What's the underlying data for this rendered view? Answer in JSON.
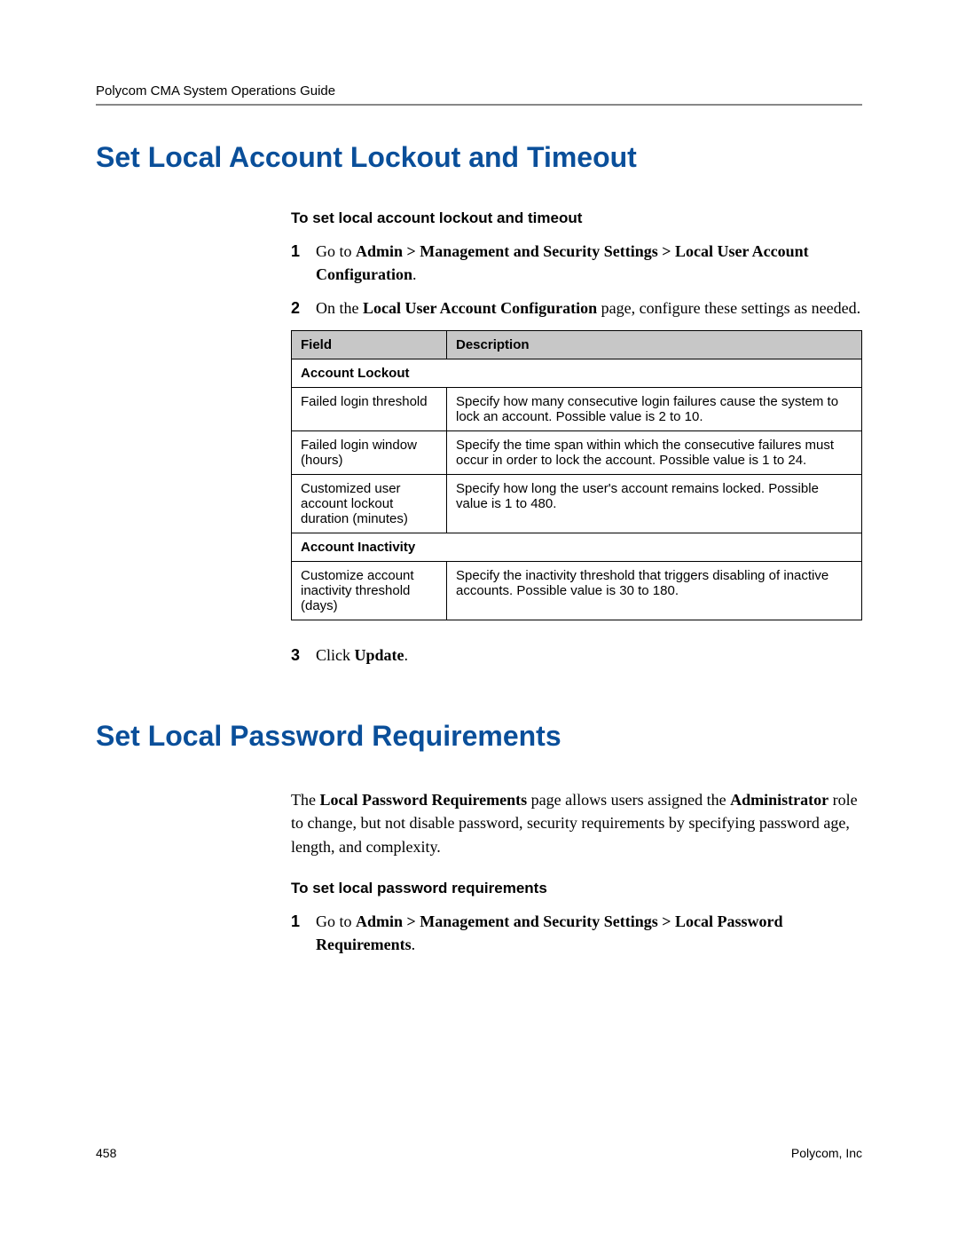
{
  "header": {
    "title": "Polycom CMA System Operations Guide"
  },
  "section1": {
    "heading": "Set Local Account Lockout and Timeout",
    "procedure_title": "To set local account lockout and timeout",
    "steps": {
      "s1": {
        "num": "1",
        "pre": "Go to ",
        "bold": "Admin > Management and Security Settings > Local User Account Configuration",
        "post": "."
      },
      "s2": {
        "num": "2",
        "pre": "On the ",
        "bold": "Local User Account Configuration",
        "post": " page, configure these settings as needed."
      },
      "s3": {
        "num": "3",
        "pre": "Click ",
        "bold": "Update",
        "post": "."
      }
    },
    "table": {
      "col1": "Field",
      "col2": "Description",
      "sectA": "Account Lockout",
      "r1f": "Failed login threshold",
      "r1d": "Specify how many consecutive login failures cause the system to lock an account. Possible value is 2 to 10.",
      "r2f": "Failed login window (hours)",
      "r2d": "Specify the time span within which the consecutive failures must occur in order to lock the account. Possible value is 1 to 24.",
      "r3f": "Customized user account lockout duration (minutes)",
      "r3d": "Specify how long the user's account remains locked. Possible value is 1 to 480.",
      "sectB": "Account Inactivity",
      "r4f": "Customize account inactivity threshold (days)",
      "r4d": "Specify the inactivity threshold that triggers disabling of inactive accounts. Possible value is 30 to 180."
    }
  },
  "section2": {
    "heading": "Set Local Password Requirements",
    "intro": {
      "pre": "The ",
      "b1": "Local Password Requirements",
      "mid": " page allows users assigned the ",
      "b2": "Administrator",
      "post": " role to change, but not disable password, security requirements by specifying password age, length, and complexity."
    },
    "procedure_title": "To set local password requirements",
    "steps": {
      "s1": {
        "num": "1",
        "pre": "Go to ",
        "bold": "Admin > Management and Security Settings > Local Password Requirements",
        "post": "."
      }
    }
  },
  "footer": {
    "page": "458",
    "company": "Polycom, Inc"
  }
}
